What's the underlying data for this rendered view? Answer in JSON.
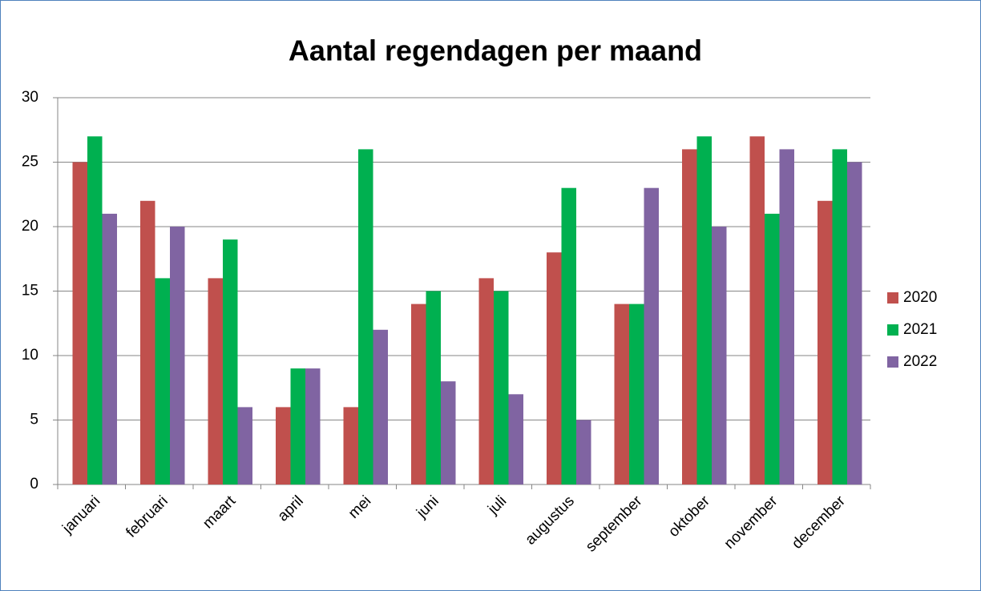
{
  "chart_data": {
    "type": "bar",
    "title": "Aantal regendagen per maand",
    "categories": [
      "januari",
      "februari",
      "maart",
      "april",
      "mei",
      "juni",
      "juli",
      "augustus",
      "september",
      "oktober",
      "november",
      "december"
    ],
    "series": [
      {
        "name": "2020",
        "color": "#c0504d",
        "values": [
          25,
          22,
          16,
          6,
          6,
          14,
          16,
          18,
          14,
          26,
          27,
          22
        ]
      },
      {
        "name": "2021",
        "color": "#00b050",
        "values": [
          27,
          16,
          19,
          9,
          26,
          15,
          15,
          23,
          14,
          27,
          21,
          26
        ]
      },
      {
        "name": "2022",
        "color": "#8064a2",
        "values": [
          21,
          20,
          6,
          9,
          12,
          8,
          7,
          5,
          23,
          20,
          26,
          25
        ]
      }
    ],
    "ylim": [
      0,
      30
    ],
    "yticks": [
      0,
      5,
      10,
      15,
      20,
      25,
      30
    ],
    "grid": true,
    "legend": "right"
  }
}
